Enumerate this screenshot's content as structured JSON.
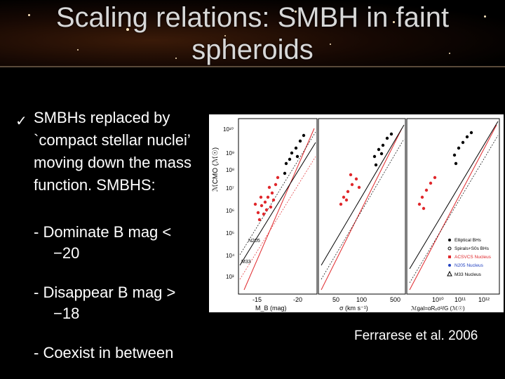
{
  "slide": {
    "title_line1": "Scaling relations: SMBH in faint",
    "title_line2": "spheroids",
    "bullet_icon": "checkmark-icon",
    "bullet_line1": "SMBHs  replaced by",
    "bullet_line2": "`compact stellar nuclei’",
    "bullet_line3": "moving down the mass",
    "bullet_line4": "function. SMBHS:",
    "sub1_line1": "- Dominate B mag <",
    "sub1_line2": "−20",
    "sub2_line1": "- Disappear B mag >",
    "sub2_line2": "−18",
    "sub3": "- Coexist  in between",
    "caption": "Ferrarese et al. 2006"
  },
  "figure": {
    "ylabel": "ℳCMO (ℳ☉)",
    "y_ticks": [
      "10¹⁰",
      "10⁹",
      "10⁸",
      "10⁷",
      "10⁶",
      "10⁵",
      "10⁴",
      "10³"
    ],
    "panel1": {
      "xlabel": "M_B (mag)",
      "ticks": [
        "-15",
        "-20"
      ],
      "labels": [
        "N205",
        "M33"
      ]
    },
    "panel2": {
      "xlabel": "σ (km s⁻¹)",
      "ticks": [
        "50",
        "100",
        "500"
      ]
    },
    "panel3": {
      "xlabel": "ℳgal=αRₑσ²/G (ℳ☉)",
      "ticks": [
        "10¹⁰",
        "10¹¹",
        "10¹²"
      ]
    },
    "legend": [
      "Elliptical BHs",
      "Spirals+S0s BHs",
      "ACSVCS Nucleus",
      "N205 Nucleus",
      "M33 Nucleus"
    ],
    "colors": {
      "red": "#e0282c",
      "black": "#000000",
      "blue": "#2040c0"
    }
  }
}
